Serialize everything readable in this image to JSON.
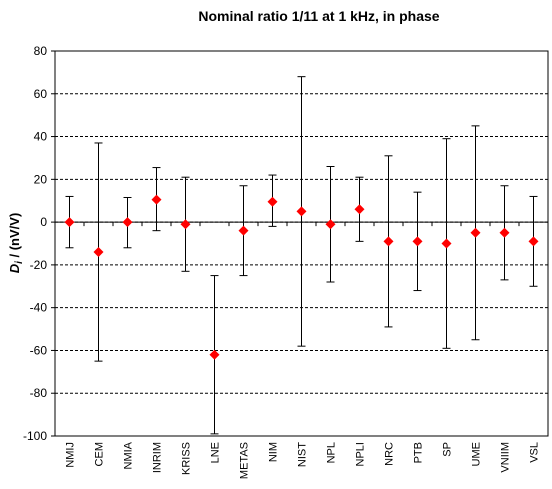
{
  "chart_data": {
    "type": "scatter",
    "title": "Nominal ratio 1/11 at 1 kHz, in phase",
    "ylabel_main": "D",
    "ylabel_sub": "i",
    "ylabel_rest": " / (nV/V)",
    "xlabel": "",
    "ylim": [
      -100,
      80
    ],
    "yticks": [
      -100,
      -80,
      -60,
      -40,
      -20,
      0,
      20,
      40,
      60,
      80
    ],
    "grid": "horizontal dashed",
    "marker_color": "#ff0000",
    "categories": [
      "NMIJ",
      "CEM",
      "NMIA",
      "INRIM",
      "KRISS",
      "LNE",
      "METAS",
      "NIM",
      "NIST",
      "NPL",
      "NPLI",
      "NRC",
      "PTB",
      "SP",
      "UME",
      "VNIIM",
      "VSL"
    ],
    "values": [
      0,
      -14,
      0,
      10.5,
      -1,
      -62,
      -4,
      9.5,
      5,
      -1,
      6,
      -9,
      -9,
      -10,
      -5,
      -5,
      -9
    ],
    "error_upper": [
      12,
      37,
      11.5,
      25.5,
      21,
      -25,
      17,
      22,
      68,
      26,
      21,
      31,
      14,
      39,
      45,
      17,
      12
    ],
    "error_lower": [
      -12,
      -65,
      -12,
      -4,
      -23,
      -99,
      -25,
      -2,
      -58,
      -28,
      -9,
      -49,
      -32,
      -59,
      -55,
      -27,
      -30
    ]
  }
}
